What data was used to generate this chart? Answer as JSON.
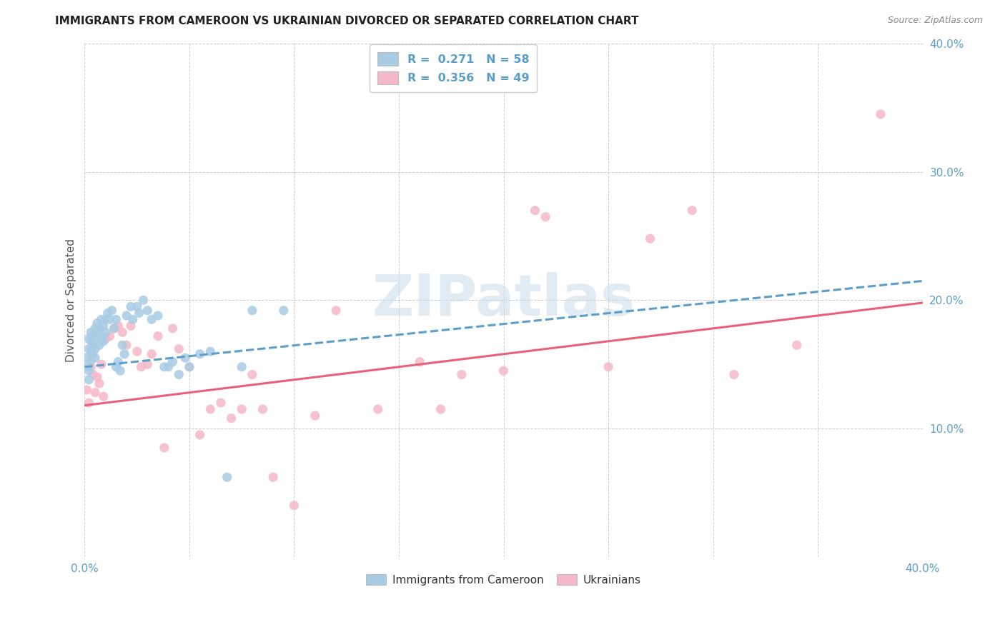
{
  "title": "IMMIGRANTS FROM CAMEROON VS UKRAINIAN DIVORCED OR SEPARATED CORRELATION CHART",
  "source": "Source: ZipAtlas.com",
  "ylabel": "Divorced or Separated",
  "xlim": [
    0.0,
    0.4
  ],
  "ylim": [
    0.0,
    0.4
  ],
  "watermark": "ZIPatlas",
  "blue_color": "#a8cce4",
  "pink_color": "#f5b8c8",
  "trend_blue": "#5b9ec9",
  "trend_pink": "#e8607a",
  "blue_scatter_x": [
    0.001,
    0.001,
    0.002,
    0.002,
    0.002,
    0.002,
    0.003,
    0.003,
    0.003,
    0.003,
    0.004,
    0.004,
    0.004,
    0.005,
    0.005,
    0.005,
    0.006,
    0.006,
    0.006,
    0.007,
    0.007,
    0.008,
    0.008,
    0.009,
    0.009,
    0.01,
    0.01,
    0.011,
    0.012,
    0.013,
    0.014,
    0.015,
    0.015,
    0.016,
    0.017,
    0.018,
    0.019,
    0.02,
    0.022,
    0.023,
    0.025,
    0.026,
    0.028,
    0.03,
    0.032,
    0.035,
    0.038,
    0.04,
    0.042,
    0.045,
    0.048,
    0.05,
    0.055,
    0.06,
    0.068,
    0.075,
    0.08,
    0.095
  ],
  "blue_scatter_y": [
    0.155,
    0.148,
    0.162,
    0.17,
    0.145,
    0.138,
    0.168,
    0.175,
    0.16,
    0.153,
    0.172,
    0.165,
    0.158,
    0.178,
    0.162,
    0.155,
    0.175,
    0.182,
    0.17,
    0.178,
    0.165,
    0.185,
    0.172,
    0.18,
    0.168,
    0.185,
    0.175,
    0.19,
    0.185,
    0.192,
    0.178,
    0.185,
    0.148,
    0.152,
    0.145,
    0.165,
    0.158,
    0.188,
    0.195,
    0.185,
    0.195,
    0.19,
    0.2,
    0.192,
    0.185,
    0.188,
    0.148,
    0.148,
    0.152,
    0.142,
    0.155,
    0.148,
    0.158,
    0.16,
    0.062,
    0.148,
    0.192,
    0.192
  ],
  "pink_scatter_x": [
    0.001,
    0.002,
    0.003,
    0.004,
    0.005,
    0.006,
    0.007,
    0.008,
    0.009,
    0.01,
    0.012,
    0.014,
    0.016,
    0.018,
    0.02,
    0.022,
    0.025,
    0.027,
    0.03,
    0.032,
    0.035,
    0.038,
    0.042,
    0.045,
    0.05,
    0.055,
    0.06,
    0.065,
    0.07,
    0.075,
    0.08,
    0.085,
    0.09,
    0.1,
    0.11,
    0.12,
    0.14,
    0.16,
    0.17,
    0.18,
    0.2,
    0.215,
    0.22,
    0.25,
    0.27,
    0.29,
    0.31,
    0.34,
    0.38
  ],
  "pink_scatter_y": [
    0.13,
    0.12,
    0.148,
    0.142,
    0.128,
    0.14,
    0.135,
    0.15,
    0.125,
    0.17,
    0.172,
    0.178,
    0.18,
    0.175,
    0.165,
    0.18,
    0.16,
    0.148,
    0.15,
    0.158,
    0.172,
    0.085,
    0.178,
    0.162,
    0.148,
    0.095,
    0.115,
    0.12,
    0.108,
    0.115,
    0.142,
    0.115,
    0.062,
    0.04,
    0.11,
    0.192,
    0.115,
    0.152,
    0.115,
    0.142,
    0.145,
    0.27,
    0.265,
    0.148,
    0.248,
    0.27,
    0.142,
    0.165,
    0.345
  ],
  "blue_trend_x": [
    0.0,
    0.4
  ],
  "blue_trend_y": [
    0.148,
    0.215
  ],
  "pink_trend_x": [
    0.0,
    0.4
  ],
  "pink_trend_y": [
    0.118,
    0.198
  ]
}
